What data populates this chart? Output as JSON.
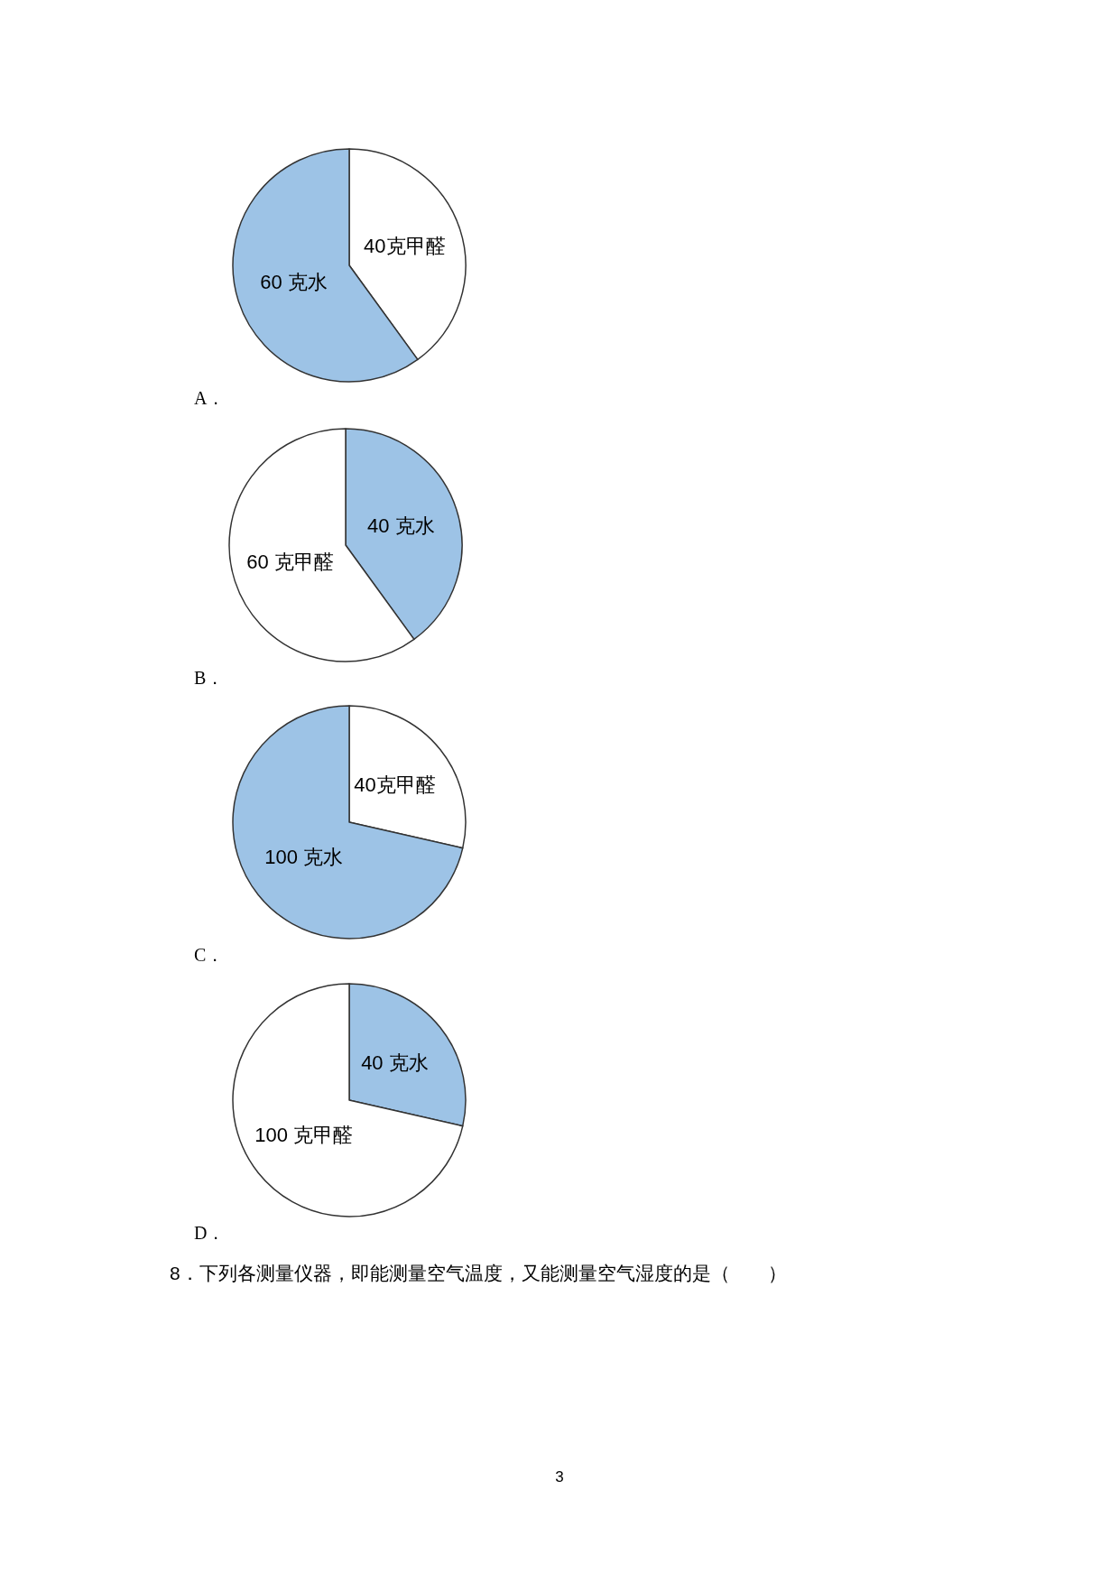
{
  "chart_data": [
    {
      "type": "pie",
      "title": "A．",
      "categories": [
        "40克甲醛",
        "60 克水"
      ],
      "values": [
        40,
        60
      ],
      "colors": [
        "#ffffff",
        "#9dc3e6"
      ]
    },
    {
      "type": "pie",
      "title": "B．",
      "categories": [
        "40 克水",
        "60 克甲醛"
      ],
      "values": [
        40,
        60
      ],
      "colors": [
        "#9dc3e6",
        "#ffffff"
      ]
    },
    {
      "type": "pie",
      "title": "C．",
      "categories": [
        "40克甲醛",
        "100 克水"
      ],
      "values": [
        40,
        100
      ],
      "colors": [
        "#ffffff",
        "#9dc3e6"
      ]
    },
    {
      "type": "pie",
      "title": "D．",
      "categories": [
        "40 克水",
        "100 克甲醛"
      ],
      "values": [
        40,
        100
      ],
      "colors": [
        "#9dc3e6",
        "#ffffff"
      ]
    },
    {
      "type": "other",
      "annotations": [
        "8．下列各测量仪器，即能测量空气温度，又能测量空气湿度的是（　　）",
        "3"
      ]
    }
  ]
}
